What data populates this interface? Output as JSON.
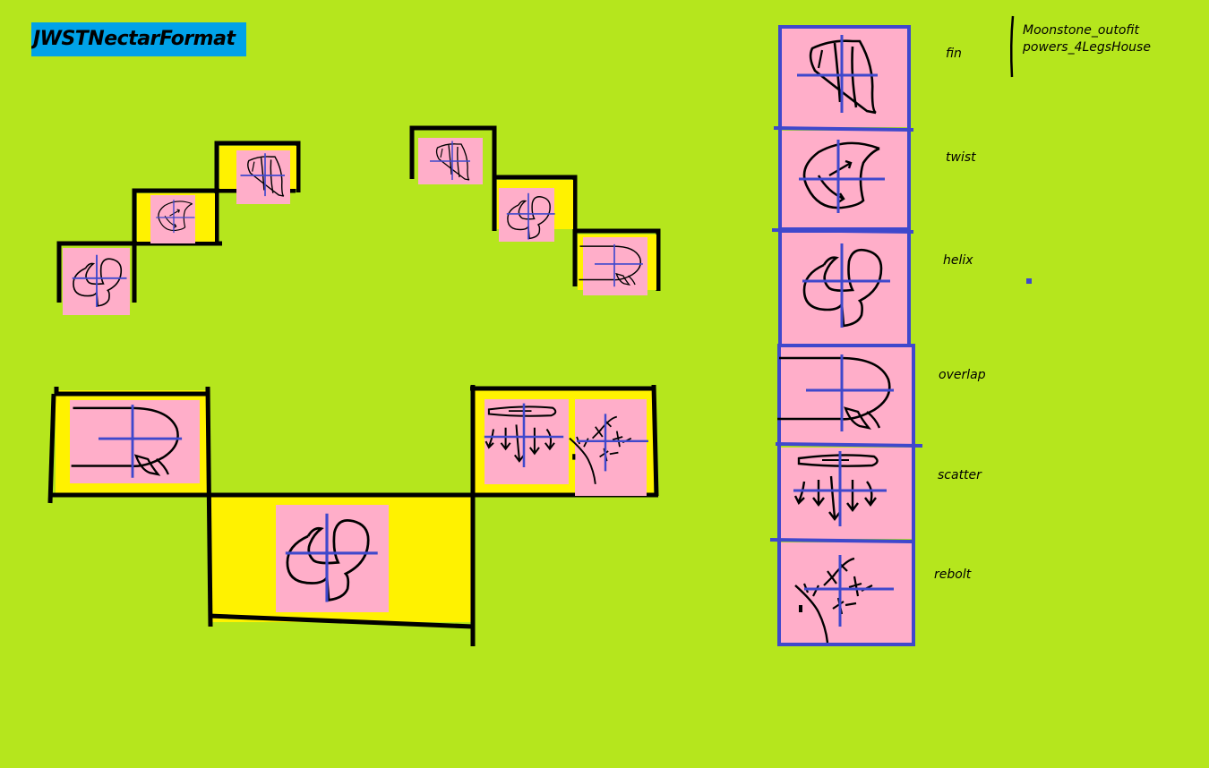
{
  "title": "JWSTNectarFormat",
  "note": {
    "line1": "Moonstone_outofit",
    "line2": "powers_4LegsHouse"
  },
  "legend": [
    {
      "label": "fin",
      "glyph": "fin"
    },
    {
      "label": "twist",
      "glyph": "twist"
    },
    {
      "label": "helix",
      "glyph": "helix"
    },
    {
      "label": "overlap",
      "glyph": "overlap"
    },
    {
      "label": "scatter",
      "glyph": "scatter"
    },
    {
      "label": "rebolt",
      "glyph": "rebolt"
    }
  ],
  "colors": {
    "background": "#b5e61d",
    "title_bg": "#00a2e8",
    "cell_fill": "#ffaec9",
    "frame_fill": "#fff200",
    "stroke": "#000000",
    "cross": "#3f48cc"
  }
}
